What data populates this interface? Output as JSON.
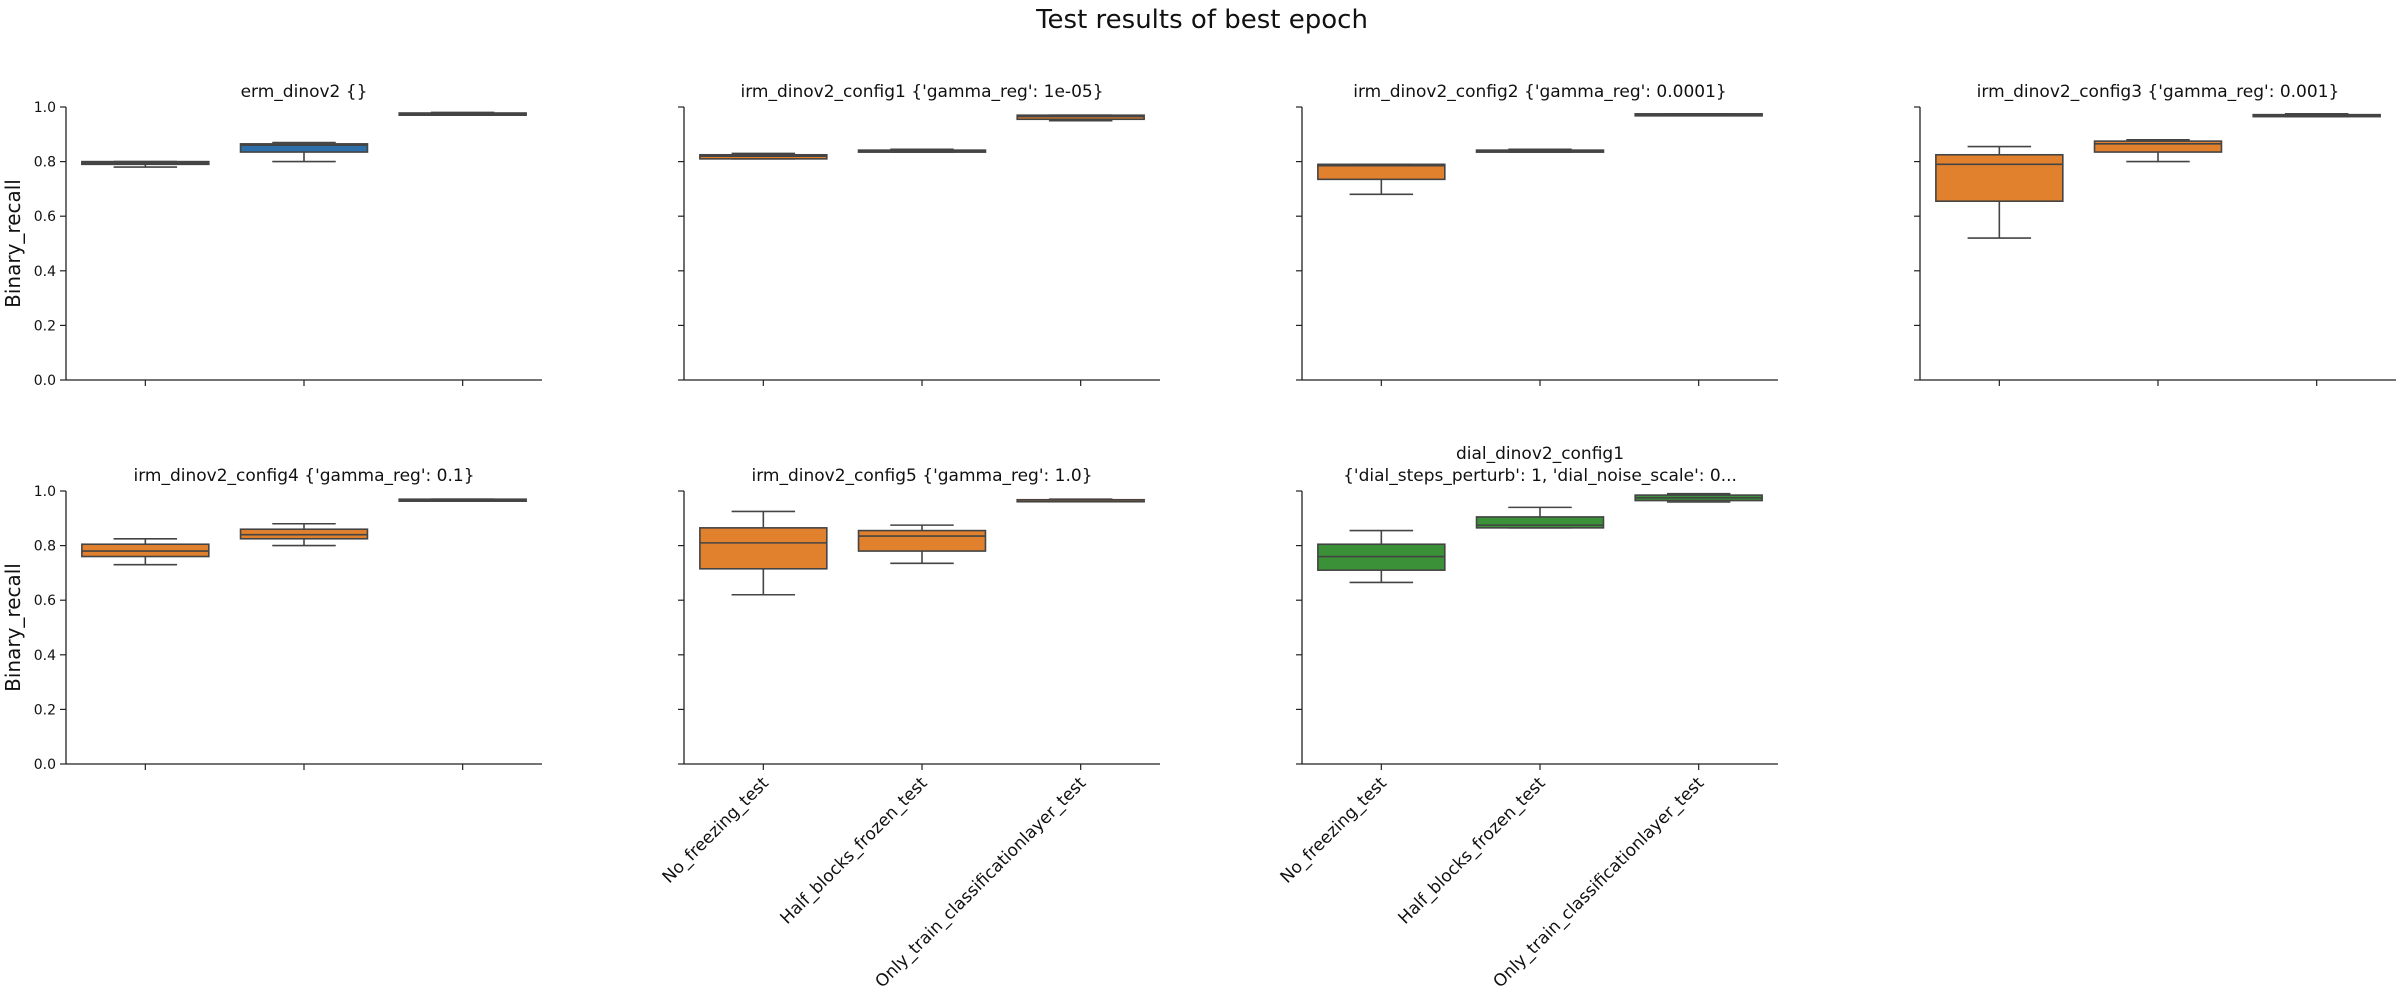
{
  "figure": {
    "title": "Test results of best epoch",
    "colors": {
      "blue": "#2d6fa8",
      "orange": "#e2812d",
      "green": "#3a9138",
      "line": "#444444",
      "axis": "#222222"
    }
  },
  "chart_data": [
    {
      "type": "box",
      "title": "erm_dinov2         {}",
      "title_lines": [
        "erm_dinov2         {}"
      ],
      "ylabel": "Binary_recall",
      "ylim": [
        0,
        1.0
      ],
      "yticks": [
        "0.0",
        "0.2",
        "0.4",
        "0.6",
        "0.8",
        "1.0"
      ],
      "show_yticklabels": true,
      "categories": [],
      "color": "blue",
      "boxes": [
        {
          "whislo": 0.78,
          "q1": 0.79,
          "med": 0.795,
          "q3": 0.8,
          "whishi": 0.8
        },
        {
          "whislo": 0.8,
          "q1": 0.835,
          "med": 0.86,
          "q3": 0.865,
          "whishi": 0.87
        },
        {
          "whislo": 0.97,
          "q1": 0.97,
          "med": 0.975,
          "q3": 0.978,
          "whishi": 0.98
        }
      ]
    },
    {
      "type": "box",
      "title": "irm_dinov2_config1 {'gamma_reg': 1e-05}",
      "title_lines": [
        "irm_dinov2_config1 {'gamma_reg': 1e-05}"
      ],
      "ylabel": "",
      "ylim": [
        0,
        1.0
      ],
      "yticks": [
        "0.0",
        "0.2",
        "0.4",
        "0.6",
        "0.8",
        "1.0"
      ],
      "show_yticklabels": false,
      "categories": [],
      "color": "orange",
      "boxes": [
        {
          "whislo": 0.81,
          "q1": 0.81,
          "med": 0.82,
          "q3": 0.825,
          "whishi": 0.83
        },
        {
          "whislo": 0.835,
          "q1": 0.835,
          "med": 0.84,
          "q3": 0.842,
          "whishi": 0.845
        },
        {
          "whislo": 0.95,
          "q1": 0.955,
          "med": 0.965,
          "q3": 0.97,
          "whishi": 0.97
        }
      ]
    },
    {
      "type": "box",
      "title": "irm_dinov2_config2 {'gamma_reg': 0.0001}",
      "title_lines": [
        "irm_dinov2_config2 {'gamma_reg': 0.0001}"
      ],
      "ylabel": "",
      "ylim": [
        0,
        1.0
      ],
      "yticks": [
        "0.0",
        "0.2",
        "0.4",
        "0.6",
        "0.8",
        "1.0"
      ],
      "show_yticklabels": false,
      "categories": [],
      "color": "orange",
      "boxes": [
        {
          "whislo": 0.68,
          "q1": 0.735,
          "med": 0.785,
          "q3": 0.79,
          "whishi": 0.79
        },
        {
          "whislo": 0.835,
          "q1": 0.835,
          "med": 0.84,
          "q3": 0.842,
          "whishi": 0.845
        },
        {
          "whislo": 0.97,
          "q1": 0.97,
          "med": 0.972,
          "q3": 0.975,
          "whishi": 0.975
        }
      ]
    },
    {
      "type": "box",
      "title": "irm_dinov2_config3 {'gamma_reg': 0.001}",
      "title_lines": [
        "irm_dinov2_config3 {'gamma_reg': 0.001}"
      ],
      "ylabel": "",
      "ylim": [
        0,
        1.0
      ],
      "yticks": [
        "0.0",
        "0.2",
        "0.4",
        "0.6",
        "0.8",
        "1.0"
      ],
      "show_yticklabels": false,
      "categories": [],
      "color": "orange",
      "boxes": [
        {
          "whislo": 0.52,
          "q1": 0.655,
          "med": 0.79,
          "q3": 0.825,
          "whishi": 0.855
        },
        {
          "whislo": 0.8,
          "q1": 0.835,
          "med": 0.865,
          "q3": 0.875,
          "whishi": 0.88
        },
        {
          "whislo": 0.965,
          "q1": 0.965,
          "med": 0.97,
          "q3": 0.972,
          "whishi": 0.975
        }
      ]
    },
    {
      "type": "box",
      "title": "irm_dinov2_config4 {'gamma_reg': 0.1}",
      "title_lines": [
        "irm_dinov2_config4 {'gamma_reg': 0.1}"
      ],
      "ylabel": "Binary_recall",
      "ylim": [
        0,
        1.0
      ],
      "yticks": [
        "0.0",
        "0.2",
        "0.4",
        "0.6",
        "0.8",
        "1.0"
      ],
      "show_yticklabels": true,
      "categories": [],
      "color": "orange",
      "boxes": [
        {
          "whislo": 0.73,
          "q1": 0.76,
          "med": 0.78,
          "q3": 0.805,
          "whishi": 0.825
        },
        {
          "whislo": 0.8,
          "q1": 0.825,
          "med": 0.84,
          "q3": 0.86,
          "whishi": 0.88
        },
        {
          "whislo": 0.965,
          "q1": 0.965,
          "med": 0.968,
          "q3": 0.97,
          "whishi": 0.97
        }
      ]
    },
    {
      "type": "box",
      "title": "irm_dinov2_config5 {'gamma_reg': 1.0}",
      "title_lines": [
        "irm_dinov2_config5 {'gamma_reg': 1.0}"
      ],
      "ylabel": "",
      "ylim": [
        0,
        1.0
      ],
      "yticks": [
        "0.0",
        "0.2",
        "0.4",
        "0.6",
        "0.8",
        "1.0"
      ],
      "show_yticklabels": false,
      "categories": [
        "No_freezing_test",
        "Half_blocks_frozen_test",
        "Only_train_classificationlayer_test"
      ],
      "color": "orange",
      "boxes": [
        {
          "whislo": 0.62,
          "q1": 0.715,
          "med": 0.81,
          "q3": 0.865,
          "whishi": 0.925
        },
        {
          "whislo": 0.735,
          "q1": 0.78,
          "med": 0.835,
          "q3": 0.855,
          "whishi": 0.875
        },
        {
          "whislo": 0.965,
          "q1": 0.965,
          "med": 0.967,
          "q3": 0.968,
          "whishi": 0.97
        }
      ]
    },
    {
      "type": "box",
      "title": "dial_dinov2_config1 {'dial_steps_perturb': 1, 'dial_noise_scale': 0...",
      "title_lines": [
        "dial_dinov2_config1",
        "{'dial_steps_perturb': 1, 'dial_noise_scale': 0..."
      ],
      "ylabel": "",
      "ylim": [
        0,
        1.0
      ],
      "yticks": [
        "0.0",
        "0.2",
        "0.4",
        "0.6",
        "0.8",
        "1.0"
      ],
      "show_yticklabels": false,
      "categories": [
        "No_freezing_test",
        "Half_blocks_frozen_test",
        "Only_train_classificationlayer_test"
      ],
      "color": "green",
      "boxes": [
        {
          "whislo": 0.665,
          "q1": 0.71,
          "med": 0.76,
          "q3": 0.805,
          "whishi": 0.855
        },
        {
          "whislo": 0.865,
          "q1": 0.865,
          "med": 0.875,
          "q3": 0.905,
          "whishi": 0.94
        },
        {
          "whislo": 0.96,
          "q1": 0.965,
          "med": 0.975,
          "q3": 0.985,
          "whishi": 0.99
        }
      ]
    }
  ]
}
